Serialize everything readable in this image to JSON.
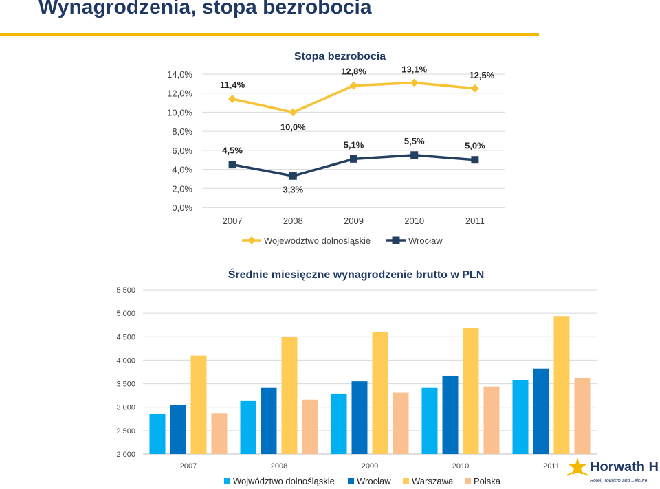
{
  "slide": {
    "title": "Wynagrodzenia, stopa bezrobocia"
  },
  "colors": {
    "accent_rule": "#f5b800",
    "title": "#1f3864",
    "gold_line": "#f7c334",
    "navy_line": "#243f60",
    "bar_light_blue": "#00b0f0",
    "bar_blue": "#0070c0",
    "bar_gold": "#ffcd57",
    "bar_peach": "#fac090"
  },
  "chart_data": [
    {
      "type": "line",
      "title": "Stopa bezrobocia",
      "x": [
        "2007",
        "2008",
        "2009",
        "2010",
        "2011"
      ],
      "ylim": [
        0,
        14
      ],
      "yticks": [
        0,
        2,
        4,
        6,
        8,
        10,
        12,
        14
      ],
      "ytick_labels": [
        "0,0%",
        "2,0%",
        "4,0%",
        "6,0%",
        "8,0%",
        "10,0%",
        "12,0%",
        "14,0%"
      ],
      "grid": false,
      "legend_position": "bottom",
      "series": [
        {
          "name": "Województwo dolnośląskie",
          "color": "#f7c334",
          "marker": "diamond",
          "values": [
            11.4,
            10.0,
            12.8,
            13.1,
            12.5
          ],
          "labels": [
            "11,4%",
            "10,0%",
            "12,8%",
            "13,1%",
            "12,5%"
          ]
        },
        {
          "name": "Wrocław",
          "color": "#243f60",
          "marker": "square",
          "values": [
            4.5,
            3.3,
            5.1,
            5.5,
            5.0
          ],
          "labels": [
            "4,5%",
            "3,3%",
            "5,1%",
            "5,5%",
            "5,0%"
          ]
        }
      ]
    },
    {
      "type": "bar",
      "title": "Średnie miesięczne wynagrodzenie brutto w PLN",
      "categories": [
        "2007",
        "2008",
        "2009",
        "2010",
        "2011"
      ],
      "ylim": [
        2000,
        5500
      ],
      "yticks": [
        2000,
        2500,
        3000,
        3500,
        4000,
        4500,
        5000,
        5500
      ],
      "ytick_labels": [
        "2 000",
        "2 500",
        "3 000",
        "3 500",
        "4 000",
        "4 500",
        "5 000",
        "5 500"
      ],
      "grid": true,
      "legend_position": "bottom",
      "series": [
        {
          "name": "Wojwództwo dolnośląskie",
          "color": "#00b0f0",
          "values": [
            2850,
            3130,
            3290,
            3410,
            3580
          ]
        },
        {
          "name": "Wrocław",
          "color": "#0070c0",
          "values": [
            3050,
            3410,
            3550,
            3670,
            3820
          ]
        },
        {
          "name": "Warszawa",
          "color": "#ffcd57",
          "values": [
            4100,
            4500,
            4600,
            4690,
            4940
          ]
        },
        {
          "name": "Polska",
          "color": "#fac090",
          "values": [
            2860,
            3160,
            3310,
            3440,
            3620
          ]
        }
      ]
    }
  ],
  "logo": {
    "name": "Horwath HTL",
    "tagline": "Hotel, Tourism and Leisure",
    "icon": "star-swirl-icon"
  }
}
